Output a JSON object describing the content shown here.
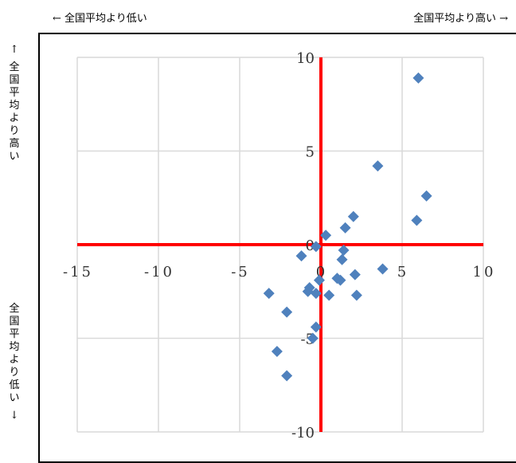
{
  "header": {
    "left": "← 全国平均より低い",
    "right": "全国平均より高い →"
  },
  "side": {
    "top_text": "全国平均より高い",
    "top_arrow": "↑",
    "bottom_text": "全国平均より低い",
    "bottom_arrow": "↓"
  },
  "colors": {
    "axis_lines": "#ff0000",
    "markers": "#4f81bd",
    "grid": "#d9d9d9"
  },
  "chart_data": {
    "type": "scatter",
    "title": "",
    "xlabel": "",
    "ylabel": "",
    "xlim": [
      -15,
      10
    ],
    "ylim": [
      -10,
      10
    ],
    "x_ticks": [
      -15,
      -10,
      -5,
      0,
      5,
      10
    ],
    "y_ticks": [
      -10,
      -5,
      0,
      5,
      10
    ],
    "x_tick_labels": [
      "-15",
      "-10",
      "-5",
      "0",
      "5",
      "10"
    ],
    "y_tick_labels": [
      "-10",
      "-5",
      "0",
      "5",
      "10"
    ],
    "grid": true,
    "reference_lines": {
      "x": 0,
      "y": 0
    },
    "series": [
      {
        "marker": "diamond",
        "points": [
          [
            6.0,
            8.9
          ],
          [
            3.5,
            4.2
          ],
          [
            6.5,
            2.6
          ],
          [
            5.9,
            1.3
          ],
          [
            2.0,
            1.5
          ],
          [
            1.5,
            0.9
          ],
          [
            0.3,
            0.5
          ],
          [
            -0.3,
            -0.1
          ],
          [
            1.4,
            -0.3
          ],
          [
            -1.2,
            -0.6
          ],
          [
            1.3,
            -0.8
          ],
          [
            3.8,
            -1.3
          ],
          [
            2.1,
            -1.6
          ],
          [
            1.0,
            -1.8
          ],
          [
            1.2,
            -1.9
          ],
          [
            -0.1,
            -1.9
          ],
          [
            -0.7,
            -2.3
          ],
          [
            -0.8,
            -2.5
          ],
          [
            -0.3,
            -2.6
          ],
          [
            0.5,
            -2.7
          ],
          [
            -3.2,
            -2.6
          ],
          [
            2.2,
            -2.7
          ],
          [
            -2.1,
            -3.6
          ],
          [
            -0.3,
            -4.4
          ],
          [
            -0.5,
            -5.0
          ],
          [
            -2.7,
            -5.7
          ],
          [
            -2.1,
            -7.0
          ]
        ]
      }
    ]
  }
}
